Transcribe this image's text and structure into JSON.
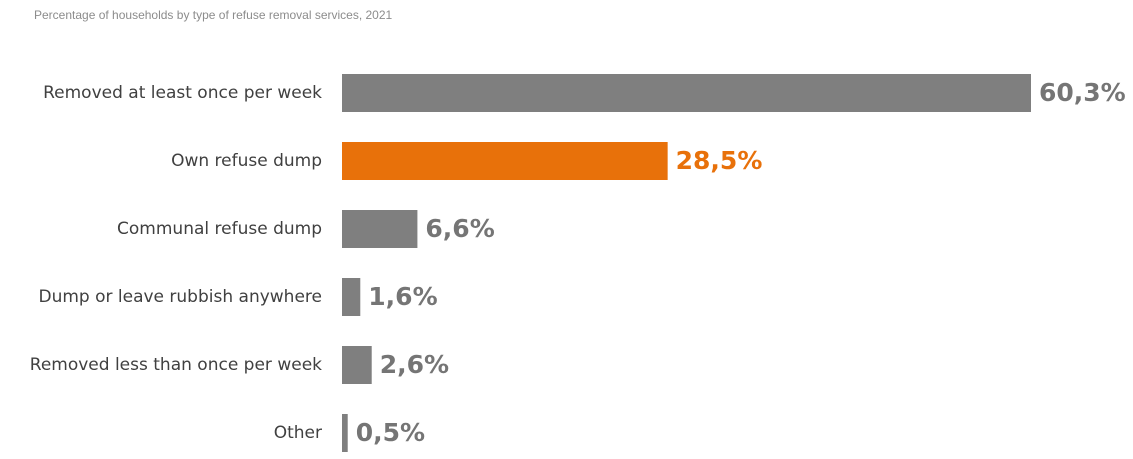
{
  "chart_data": {
    "type": "bar",
    "orientation": "horizontal",
    "title": "Percentage of households by type of refuse removal services, 2021",
    "xlabel": "",
    "ylabel": "",
    "xlim": [
      0,
      60.3
    ],
    "grid": false,
    "legend": "none",
    "categories": [
      "Removed at least once per week",
      "Own refuse dump",
      "Communal refuse dump",
      "Dump or leave rubbish anywhere",
      "Removed less than once per week",
      "Other"
    ],
    "values": [
      60.3,
      28.5,
      6.6,
      1.6,
      2.6,
      0.5
    ],
    "value_labels": [
      "60,3%",
      "28,5%",
      "6,6%",
      "1,6%",
      "2,6%",
      "0,5%"
    ],
    "highlight_index": 1,
    "colors": {
      "bar": "#7f7f7f",
      "highlight": "#e8710a",
      "label_default": "#757575"
    }
  }
}
